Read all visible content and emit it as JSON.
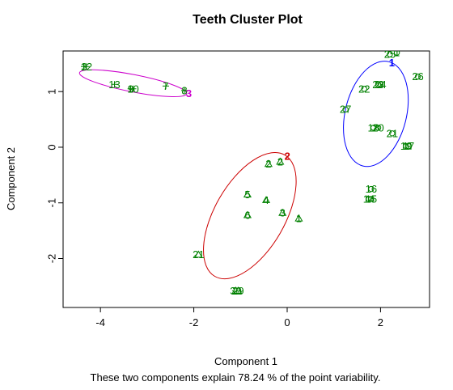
{
  "chart_data": {
    "type": "scatter",
    "title": "Teeth Cluster Plot",
    "xlabel": "Component 1",
    "ylabel": "Component 2",
    "subtitle": "These two components explain 78.24 % of the point variability.",
    "xlim": [
      -4.8,
      3.05
    ],
    "ylim": [
      -2.88,
      1.73
    ],
    "xticks": [
      -4,
      -2,
      0,
      2
    ],
    "yticks": [
      -2,
      -1,
      0,
      1
    ],
    "xtick_labels": [
      "-4",
      "-2",
      "0",
      "2"
    ],
    "ytick_labels": [
      "-2",
      "-1",
      "0",
      "1"
    ],
    "grid": false,
    "colors": {
      "label": "#008000",
      "ellipse_1": "#0000ff",
      "ellipse_2": "#cc0000",
      "ellipse_3": "#cc00cc"
    },
    "clusters": [
      {
        "id": "1",
        "marker": "circle",
        "color": "#0000ff",
        "ellipse": {
          "cx": 1.9,
          "cy": 0.6,
          "rx": 1.15,
          "ry": 0.55,
          "angle_deg": 76
        },
        "points": [
          {
            "label": "1",
            "x": 2.35,
            "y": 1.7
          },
          {
            "label": "25",
            "x": 2.2,
            "y": 1.67
          },
          {
            "label": "26",
            "x": 2.8,
            "y": 1.27
          },
          {
            "label": "22",
            "x": 1.65,
            "y": 1.05
          },
          {
            "label": "23",
            "x": 1.95,
            "y": 1.13
          },
          {
            "label": "24",
            "x": 2.0,
            "y": 1.13
          },
          {
            "label": "27",
            "x": 1.25,
            "y": 0.68
          },
          {
            "label": "18",
            "x": 1.85,
            "y": 0.35
          },
          {
            "label": "20",
            "x": 1.95,
            "y": 0.35
          },
          {
            "label": "21",
            "x": 2.25,
            "y": 0.25
          },
          {
            "label": "17",
            "x": 2.6,
            "y": 0.02
          },
          {
            "label": "19",
            "x": 2.55,
            "y": 0.02
          },
          {
            "label": "16",
            "x": 1.8,
            "y": -0.75
          },
          {
            "label": "14",
            "x": 1.75,
            "y": -0.93
          },
          {
            "label": "15",
            "x": 1.8,
            "y": -0.93
          }
        ]
      },
      {
        "id": "2",
        "marker": "triangle",
        "color": "#cc0000",
        "ellipse": {
          "cx": -0.8,
          "cy": -1.23,
          "rx": 1.5,
          "ry": 0.63,
          "angle_deg": 60
        },
        "points": [
          {
            "label": "2",
            "x": -0.15,
            "y": -0.26
          },
          {
            "label": "2",
            "x": -0.4,
            "y": -0.3
          },
          {
            "label": "5",
            "x": -0.85,
            "y": -0.85
          },
          {
            "label": "4",
            "x": -0.45,
            "y": -0.95
          },
          {
            "label": "3",
            "x": -0.1,
            "y": -1.18
          },
          {
            "label": "1",
            "x": 0.25,
            "y": -1.28
          },
          {
            "label": "6",
            "x": -0.85,
            "y": -1.22
          },
          {
            "label": "21",
            "x": -1.9,
            "y": -1.93
          },
          {
            "label": "29",
            "x": -1.05,
            "y": -2.58
          },
          {
            "label": "30",
            "x": -1.1,
            "y": -2.58
          }
        ]
      },
      {
        "id": "3",
        "marker": "plus",
        "color": "#cc00cc",
        "ellipse": {
          "cx": -3.3,
          "cy": 1.15,
          "rx": 1.17,
          "ry": 0.155,
          "angle_deg": -11
        },
        "points": [
          {
            "label": "3",
            "x": -4.35,
            "y": 1.45
          },
          {
            "label": "12",
            "x": -4.3,
            "y": 1.45
          },
          {
            "label": "13",
            "x": -3.7,
            "y": 1.13
          },
          {
            "label": "10",
            "x": -3.3,
            "y": 1.05
          },
          {
            "label": "9",
            "x": -3.35,
            "y": 1.05
          },
          {
            "label": "7",
            "x": -2.6,
            "y": 1.1
          },
          {
            "label": "8",
            "x": -2.2,
            "y": 1.02
          }
        ]
      }
    ]
  }
}
